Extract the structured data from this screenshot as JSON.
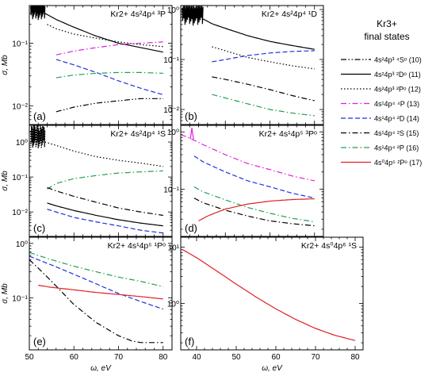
{
  "legend": {
    "title_line1": "Kr3+",
    "title_line2": "final states",
    "entries": [
      {
        "id": 10,
        "label": "4s²4p³ ⁴Sᵒ (10)",
        "color": "#000000",
        "dash": "dashdotdot"
      },
      {
        "id": 11,
        "label": "4s²4p³ ²Dᵒ (11)",
        "color": "#000000",
        "dash": "solid"
      },
      {
        "id": 12,
        "label": "4s²4p³ ²Pᵒ (12)",
        "color": "#000000",
        "dash": "dotted"
      },
      {
        "id": 13,
        "label": "4s¹4p⁴ ⁴P (13)",
        "color": "#e020e0",
        "dash": "dashdot"
      },
      {
        "id": 14,
        "label": "4s¹4p⁴ ²D (14)",
        "color": "#2030e0",
        "dash": "dashed"
      },
      {
        "id": 15,
        "label": "4s¹4p⁴ ²S (15)",
        "color": "#000000",
        "dash": "dashdot"
      },
      {
        "id": 16,
        "label": "4s¹4p⁴ ²P (16)",
        "color": "#20a050",
        "dash": "dashdot"
      },
      {
        "id": 17,
        "label": "4s⁰4p⁵ ²Pᵒ (17)",
        "color": "#e02020",
        "dash": "solid"
      }
    ]
  },
  "chart_data": [
    {
      "type": "line",
      "panel_label": "(a)",
      "title": "Kr2+  4s²4p⁴ ³P",
      "xlim": [
        50,
        82
      ],
      "ylim": [
        0.005,
        0.4
      ],
      "yscale": "log",
      "xticks": [],
      "yticks": [
        "10⁻²",
        "10⁻¹"
      ],
      "ylabel": "σ, Mb",
      "xlabel": "",
      "series": [
        {
          "key": 11,
          "x": [
            53.5,
            56,
            60,
            65,
            70,
            75,
            80
          ],
          "y": [
            0.3,
            0.24,
            0.18,
            0.13,
            0.1,
            0.085,
            0.072
          ],
          "noisy_start": 53.5
        },
        {
          "key": 12,
          "x": [
            54,
            56,
            60,
            65,
            70,
            75,
            80
          ],
          "y": [
            0.2,
            0.17,
            0.14,
            0.12,
            0.105,
            0.095,
            0.088
          ]
        },
        {
          "key": 13,
          "x": [
            56,
            60,
            65,
            70,
            75,
            80
          ],
          "y": [
            0.065,
            0.075,
            0.085,
            0.095,
            0.1,
            0.105
          ]
        },
        {
          "key": 14,
          "x": [
            56,
            60,
            65,
            70,
            75,
            80
          ],
          "y": [
            0.055,
            0.045,
            0.034,
            0.025,
            0.019,
            0.015
          ]
        },
        {
          "key": 16,
          "x": [
            56,
            60,
            65,
            70,
            75,
            80
          ],
          "y": [
            0.028,
            0.031,
            0.033,
            0.034,
            0.034,
            0.033
          ]
        },
        {
          "key": 10,
          "x": [
            56,
            60,
            65,
            70,
            75,
            80
          ],
          "y": [
            0.008,
            0.0095,
            0.011,
            0.012,
            0.013,
            0.013
          ]
        }
      ]
    },
    {
      "type": "line",
      "panel_label": "(b)",
      "title": "Kr2+  4s²4p⁴ ¹D",
      "xlim": [
        50,
        82
      ],
      "ylim": [
        0.005,
        1.2
      ],
      "yscale": "log",
      "xticks": [],
      "yticks": [
        "10⁻²",
        "10⁻¹",
        "10⁰"
      ],
      "ylabel": "",
      "xlabel": "",
      "series": [
        {
          "key": 11,
          "x": [
            55,
            57,
            60,
            65,
            70,
            75,
            80
          ],
          "y": [
            0.65,
            0.52,
            0.42,
            0.3,
            0.23,
            0.19,
            0.16
          ],
          "noisy_start": 55
        },
        {
          "key": 12,
          "x": [
            57,
            60,
            65,
            70,
            75,
            80
          ],
          "y": [
            0.18,
            0.15,
            0.11,
            0.09,
            0.075,
            0.065
          ]
        },
        {
          "key": 14,
          "x": [
            57,
            60,
            65,
            70,
            75,
            80
          ],
          "y": [
            0.09,
            0.1,
            0.12,
            0.135,
            0.145,
            0.15
          ]
        },
        {
          "key": 15,
          "x": [
            57,
            60,
            65,
            70,
            75,
            80
          ],
          "y": [
            0.045,
            0.04,
            0.032,
            0.025,
            0.019,
            0.015
          ]
        },
        {
          "key": 16,
          "x": [
            57,
            60,
            65,
            70,
            75,
            80
          ],
          "y": [
            0.02,
            0.017,
            0.013,
            0.01,
            0.0085,
            0.0075
          ]
        }
      ]
    },
    {
      "type": "line",
      "panel_label": "(c)",
      "title": "Kr2+  4s²4p⁴ ¹S",
      "xlim": [
        50,
        82
      ],
      "ylim": [
        0.002,
        3
      ],
      "yscale": "log",
      "xticks": [],
      "yticks": [
        "10⁻²",
        "10⁻¹",
        "10⁰"
      ],
      "ylabel": "σ, Mb",
      "xlabel": "",
      "series": [
        {
          "key": 12,
          "x": [
            53.5,
            56,
            60,
            65,
            70,
            75,
            80
          ],
          "y": [
            1.0,
            0.8,
            0.55,
            0.38,
            0.3,
            0.25,
            0.2
          ],
          "noisy_start": 53.5
        },
        {
          "key": 16,
          "x": [
            54,
            56,
            60,
            65,
            70,
            75,
            80
          ],
          "y": [
            0.045,
            0.065,
            0.09,
            0.11,
            0.13,
            0.14,
            0.15
          ]
        },
        {
          "key": 15,
          "x": [
            54,
            56,
            60,
            65,
            70,
            75,
            80
          ],
          "y": [
            0.05,
            0.04,
            0.028,
            0.019,
            0.013,
            0.01,
            0.008
          ]
        },
        {
          "key": 11,
          "x": [
            54,
            56,
            60,
            65,
            70,
            75,
            80
          ],
          "y": [
            0.018,
            0.015,
            0.011,
            0.008,
            0.006,
            0.0048,
            0.004
          ]
        },
        {
          "key": 14,
          "x": [
            54,
            56,
            60,
            65,
            70,
            75,
            80
          ],
          "y": [
            0.012,
            0.01,
            0.007,
            0.0052,
            0.004,
            0.003,
            0.0025
          ]
        }
      ]
    },
    {
      "type": "line",
      "panel_label": "(d)",
      "title": "Kr2+  4s¹4p⁵ ³Pᵒ",
      "xlim": [
        50,
        82
      ],
      "ylim": [
        0.015,
        1.3
      ],
      "yscale": "log",
      "xticks": [],
      "yticks": [
        "10⁻¹",
        "10⁰"
      ],
      "ylabel": "",
      "xlabel": "",
      "series": [
        {
          "key": 13,
          "x": [
            50,
            52,
            55,
            60,
            65,
            70,
            75,
            80
          ],
          "y": [
            0.9,
            0.78,
            0.6,
            0.4,
            0.28,
            0.22,
            0.17,
            0.14
          ],
          "spike_at": 52.5
        },
        {
          "key": 14,
          "x": [
            53,
            55,
            60,
            65,
            70,
            75,
            80
          ],
          "y": [
            0.38,
            0.3,
            0.2,
            0.14,
            0.11,
            0.085,
            0.07
          ]
        },
        {
          "key": 16,
          "x": [
            53,
            55,
            60,
            65,
            70,
            75,
            80
          ],
          "y": [
            0.11,
            0.09,
            0.065,
            0.048,
            0.038,
            0.031,
            0.027
          ]
        },
        {
          "key": 15,
          "x": [
            53,
            55,
            60,
            65,
            70,
            75,
            80
          ],
          "y": [
            0.07,
            0.058,
            0.043,
            0.034,
            0.028,
            0.025,
            0.023
          ]
        },
        {
          "key": 17,
          "x": [
            54,
            56,
            60,
            65,
            70,
            75,
            80
          ],
          "y": [
            0.028,
            0.034,
            0.045,
            0.055,
            0.062,
            0.066,
            0.068
          ]
        }
      ]
    },
    {
      "type": "line",
      "panel_label": "(e)",
      "title": "Kr2+  4s¹4p⁵ ¹Pᵒ",
      "xlim": [
        50,
        82
      ],
      "ylim": [
        0.011,
        1.3
      ],
      "yscale": "log",
      "xticks": [
        "50",
        "60",
        "70",
        "80"
      ],
      "yticks": [
        "10⁻¹",
        "10⁰"
      ],
      "ylabel": "σ, Mb",
      "xlabel": "ω, eV",
      "series": [
        {
          "key": 16,
          "x": [
            50,
            52,
            55,
            60,
            65,
            70,
            75,
            80
          ],
          "y": [
            0.68,
            0.6,
            0.5,
            0.38,
            0.3,
            0.24,
            0.2,
            0.16
          ]
        },
        {
          "key": 14,
          "x": [
            50,
            52,
            55,
            60,
            65,
            70,
            75,
            80
          ],
          "y": [
            0.58,
            0.5,
            0.4,
            0.27,
            0.18,
            0.12,
            0.085,
            0.062
          ]
        },
        {
          "key": 15,
          "x": [
            50,
            52,
            55,
            60,
            65,
            70,
            73,
            75,
            78,
            80
          ],
          "y": [
            0.5,
            0.35,
            0.2,
            0.075,
            0.035,
            0.02,
            0.016,
            0.015,
            0.015,
            0.015
          ]
        },
        {
          "key": 17,
          "x": [
            52,
            55,
            60,
            65,
            70,
            75,
            80
          ],
          "y": [
            0.17,
            0.155,
            0.14,
            0.125,
            0.115,
            0.105,
            0.095
          ]
        }
      ]
    },
    {
      "type": "line",
      "panel_label": "(f)",
      "title": "Kr2+  4s⁰4p⁶ ¹S",
      "xlim": [
        36,
        82
      ],
      "ylim": [
        0.15,
        15
      ],
      "yscale": "log",
      "xticks": [
        "40",
        "50",
        "60",
        "70",
        "80"
      ],
      "yticks": [
        "10⁰",
        "10¹"
      ],
      "ylabel": "",
      "xlabel": "ω, eV",
      "series": [
        {
          "key": 17,
          "x": [
            36.5,
            40,
            45,
            50,
            55,
            60,
            65,
            70,
            75,
            80
          ],
          "y": [
            9,
            6.5,
            3.8,
            2.2,
            1.3,
            0.8,
            0.52,
            0.36,
            0.27,
            0.22
          ]
        }
      ]
    }
  ]
}
